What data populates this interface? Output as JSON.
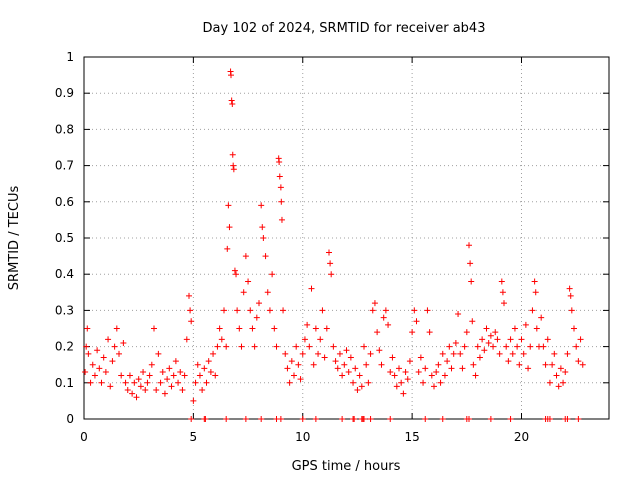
{
  "chart_data": {
    "type": "scatter",
    "title": "Day 102 of 2024, SRMTID for receiver ab43",
    "xlabel": "GPS time / hours",
    "ylabel": "SRMTID / TECUs",
    "xlim": [
      0,
      24
    ],
    "ylim": [
      0,
      1
    ],
    "x_ticks": [
      0,
      5,
      10,
      15,
      20
    ],
    "x_tick_labels": [
      "0",
      "5",
      "10",
      "15",
      "20"
    ],
    "y_ticks": [
      0,
      0.1,
      0.2,
      0.3,
      0.4,
      0.5,
      0.6,
      0.7,
      0.8,
      0.9,
      1
    ],
    "y_tick_labels": [
      "0",
      "0.1",
      "0.2",
      "0.3",
      "0.4",
      "0.5",
      "0.6",
      "0.7",
      "0.8",
      "0.9",
      "1"
    ],
    "grid": true,
    "marker": "+",
    "color": "#ff0000",
    "series": [
      {
        "name": "SRMTID",
        "points": [
          [
            0.05,
            0.13
          ],
          [
            0.1,
            0.2
          ],
          [
            0.15,
            0.25
          ],
          [
            0.2,
            0.18
          ],
          [
            0.3,
            0.1
          ],
          [
            0.4,
            0.15
          ],
          [
            0.5,
            0.12
          ],
          [
            0.6,
            0.19
          ],
          [
            0.7,
            0.14
          ],
          [
            0.8,
            0.1
          ],
          [
            0.9,
            0.17
          ],
          [
            1.0,
            0.13
          ],
          [
            1.1,
            0.22
          ],
          [
            1.2,
            0.09
          ],
          [
            1.3,
            0.16
          ],
          [
            1.4,
            0.2
          ],
          [
            1.5,
            0.25
          ],
          [
            1.6,
            0.18
          ],
          [
            1.7,
            0.12
          ],
          [
            1.8,
            0.21
          ],
          [
            1.9,
            0.1
          ],
          [
            2.0,
            0.08
          ],
          [
            2.1,
            0.12
          ],
          [
            2.2,
            0.07
          ],
          [
            2.3,
            0.1
          ],
          [
            2.4,
            0.06
          ],
          [
            2.5,
            0.11
          ],
          [
            2.6,
            0.09
          ],
          [
            2.7,
            0.13
          ],
          [
            2.8,
            0.08
          ],
          [
            2.9,
            0.1
          ],
          [
            3.0,
            0.12
          ],
          [
            3.1,
            0.15
          ],
          [
            3.2,
            0.25
          ],
          [
            3.3,
            0.08
          ],
          [
            3.4,
            0.18
          ],
          [
            3.5,
            0.1
          ],
          [
            3.6,
            0.13
          ],
          [
            3.7,
            0.07
          ],
          [
            3.8,
            0.11
          ],
          [
            3.9,
            0.14
          ],
          [
            4.0,
            0.09
          ],
          [
            4.1,
            0.12
          ],
          [
            4.2,
            0.16
          ],
          [
            4.3,
            0.1
          ],
          [
            4.4,
            0.13
          ],
          [
            4.5,
            0.08
          ],
          [
            4.6,
            0.12
          ],
          [
            4.7,
            0.22
          ],
          [
            4.8,
            0.34
          ],
          [
            4.85,
            0.3
          ],
          [
            4.9,
            0.27
          ],
          [
            5.0,
            0.05
          ],
          [
            5.1,
            0.1
          ],
          [
            5.2,
            0.15
          ],
          [
            5.3,
            0.12
          ],
          [
            5.4,
            0.08
          ],
          [
            5.5,
            0.14
          ],
          [
            5.6,
            0.1
          ],
          [
            5.7,
            0.16
          ],
          [
            5.8,
            0.13
          ],
          [
            5.9,
            0.18
          ],
          [
            6.0,
            0.12
          ],
          [
            6.1,
            0.2
          ],
          [
            6.2,
            0.25
          ],
          [
            6.3,
            0.22
          ],
          [
            6.4,
            0.3
          ],
          [
            6.5,
            0.2
          ],
          [
            6.55,
            0.47
          ],
          [
            6.6,
            0.59
          ],
          [
            6.65,
            0.53
          ],
          [
            6.7,
            0.96
          ],
          [
            6.72,
            0.95
          ],
          [
            6.75,
            0.88
          ],
          [
            6.78,
            0.87
          ],
          [
            6.8,
            0.73
          ],
          [
            6.82,
            0.7
          ],
          [
            6.85,
            0.69
          ],
          [
            6.9,
            0.41
          ],
          [
            6.95,
            0.4
          ],
          [
            7.0,
            0.3
          ],
          [
            7.1,
            0.25
          ],
          [
            7.2,
            0.2
          ],
          [
            7.3,
            0.35
          ],
          [
            7.4,
            0.45
          ],
          [
            7.5,
            0.38
          ],
          [
            7.6,
            0.3
          ],
          [
            7.7,
            0.25
          ],
          [
            7.8,
            0.2
          ],
          [
            7.9,
            0.28
          ],
          [
            8.0,
            0.32
          ],
          [
            8.1,
            0.59
          ],
          [
            8.15,
            0.53
          ],
          [
            8.2,
            0.5
          ],
          [
            8.3,
            0.45
          ],
          [
            8.4,
            0.35
          ],
          [
            8.5,
            0.3
          ],
          [
            8.6,
            0.4
          ],
          [
            8.7,
            0.25
          ],
          [
            8.8,
            0.2
          ],
          [
            8.9,
            0.72
          ],
          [
            8.92,
            0.71
          ],
          [
            8.95,
            0.67
          ],
          [
            9.0,
            0.64
          ],
          [
            9.02,
            0.6
          ],
          [
            9.05,
            0.55
          ],
          [
            9.1,
            0.3
          ],
          [
            9.2,
            0.18
          ],
          [
            9.3,
            0.14
          ],
          [
            9.4,
            0.1
          ],
          [
            9.5,
            0.16
          ],
          [
            9.6,
            0.12
          ],
          [
            9.7,
            0.2
          ],
          [
            9.8,
            0.15
          ],
          [
            9.9,
            0.11
          ],
          [
            10.0,
            0.18
          ],
          [
            10.1,
            0.22
          ],
          [
            10.2,
            0.26
          ],
          [
            10.3,
            0.2
          ],
          [
            10.4,
            0.36
          ],
          [
            10.5,
            0.15
          ],
          [
            10.6,
            0.25
          ],
          [
            10.7,
            0.18
          ],
          [
            10.8,
            0.22
          ],
          [
            10.9,
            0.3
          ],
          [
            11.0,
            0.17
          ],
          [
            11.1,
            0.25
          ],
          [
            11.2,
            0.46
          ],
          [
            11.25,
            0.43
          ],
          [
            11.3,
            0.4
          ],
          [
            11.4,
            0.2
          ],
          [
            11.5,
            0.16
          ],
          [
            11.6,
            0.14
          ],
          [
            11.7,
            0.18
          ],
          [
            11.8,
            0.12
          ],
          [
            11.9,
            0.15
          ],
          [
            12.0,
            0.19
          ],
          [
            12.1,
            0.13
          ],
          [
            12.2,
            0.17
          ],
          [
            12.3,
            0.1
          ],
          [
            12.4,
            0.14
          ],
          [
            12.5,
            0.08
          ],
          [
            12.6,
            0.12
          ],
          [
            12.7,
            0.09
          ],
          [
            12.8,
            0.2
          ],
          [
            12.9,
            0.15
          ],
          [
            13.0,
            0.1
          ],
          [
            13.1,
            0.18
          ],
          [
            13.2,
            0.3
          ],
          [
            13.3,
            0.32
          ],
          [
            13.4,
            0.24
          ],
          [
            13.5,
            0.19
          ],
          [
            13.6,
            0.15
          ],
          [
            13.7,
            0.28
          ],
          [
            13.8,
            0.3
          ],
          [
            13.9,
            0.26
          ],
          [
            14.0,
            0.13
          ],
          [
            14.1,
            0.17
          ],
          [
            14.2,
            0.12
          ],
          [
            14.3,
            0.09
          ],
          [
            14.4,
            0.14
          ],
          [
            14.5,
            0.1
          ],
          [
            14.6,
            0.07
          ],
          [
            14.7,
            0.13
          ],
          [
            14.8,
            0.11
          ],
          [
            14.9,
            0.16
          ],
          [
            15.0,
            0.24
          ],
          [
            15.1,
            0.3
          ],
          [
            15.2,
            0.27
          ],
          [
            15.3,
            0.13
          ],
          [
            15.4,
            0.17
          ],
          [
            15.5,
            0.1
          ],
          [
            15.6,
            0.14
          ],
          [
            15.7,
            0.3
          ],
          [
            15.8,
            0.24
          ],
          [
            15.9,
            0.12
          ],
          [
            16.0,
            0.09
          ],
          [
            16.1,
            0.13
          ],
          [
            16.2,
            0.15
          ],
          [
            16.3,
            0.1
          ],
          [
            16.4,
            0.18
          ],
          [
            16.5,
            0.12
          ],
          [
            16.6,
            0.16
          ],
          [
            16.7,
            0.2
          ],
          [
            16.8,
            0.14
          ],
          [
            16.9,
            0.18
          ],
          [
            17.0,
            0.21
          ],
          [
            17.1,
            0.29
          ],
          [
            17.2,
            0.18
          ],
          [
            17.3,
            0.14
          ],
          [
            17.4,
            0.2
          ],
          [
            17.5,
            0.24
          ],
          [
            17.6,
            0.48
          ],
          [
            17.65,
            0.43
          ],
          [
            17.7,
            0.38
          ],
          [
            17.75,
            0.27
          ],
          [
            17.8,
            0.15
          ],
          [
            17.9,
            0.12
          ],
          [
            18.0,
            0.2
          ],
          [
            18.1,
            0.17
          ],
          [
            18.2,
            0.22
          ],
          [
            18.3,
            0.19
          ],
          [
            18.4,
            0.25
          ],
          [
            18.5,
            0.21
          ],
          [
            18.6,
            0.23
          ],
          [
            18.7,
            0.2
          ],
          [
            18.8,
            0.24
          ],
          [
            18.9,
            0.22
          ],
          [
            19.0,
            0.18
          ],
          [
            19.1,
            0.38
          ],
          [
            19.15,
            0.35
          ],
          [
            19.2,
            0.32
          ],
          [
            19.3,
            0.2
          ],
          [
            19.4,
            0.16
          ],
          [
            19.5,
            0.22
          ],
          [
            19.6,
            0.18
          ],
          [
            19.7,
            0.25
          ],
          [
            19.8,
            0.2
          ],
          [
            19.9,
            0.15
          ],
          [
            20.0,
            0.22
          ],
          [
            20.1,
            0.18
          ],
          [
            20.2,
            0.26
          ],
          [
            20.3,
            0.14
          ],
          [
            20.4,
            0.2
          ],
          [
            20.5,
            0.3
          ],
          [
            20.6,
            0.38
          ],
          [
            20.65,
            0.35
          ],
          [
            20.7,
            0.25
          ],
          [
            20.8,
            0.2
          ],
          [
            20.9,
            0.28
          ],
          [
            21.0,
            0.2
          ],
          [
            21.1,
            0.15
          ],
          [
            21.2,
            0.22
          ],
          [
            21.3,
            0.1
          ],
          [
            21.4,
            0.15
          ],
          [
            21.5,
            0.18
          ],
          [
            21.6,
            0.12
          ],
          [
            21.7,
            0.09
          ],
          [
            21.8,
            0.14
          ],
          [
            21.9,
            0.1
          ],
          [
            22.0,
            0.13
          ],
          [
            22.1,
            0.18
          ],
          [
            22.2,
            0.36
          ],
          [
            22.25,
            0.34
          ],
          [
            22.3,
            0.3
          ],
          [
            22.4,
            0.25
          ],
          [
            22.5,
            0.2
          ],
          [
            22.6,
            0.16
          ],
          [
            22.7,
            0.22
          ],
          [
            22.8,
            0.15
          ],
          [
            4.9,
            0.0
          ],
          [
            5.5,
            0.0
          ],
          [
            5.55,
            0.0
          ],
          [
            6.5,
            0.0
          ],
          [
            7.4,
            0.0
          ],
          [
            8.1,
            0.0
          ],
          [
            8.8,
            0.0
          ],
          [
            9.0,
            0.0
          ],
          [
            10.0,
            0.0
          ],
          [
            10.6,
            0.0
          ],
          [
            11.8,
            0.0
          ],
          [
            12.3,
            0.0
          ],
          [
            12.35,
            0.0
          ],
          [
            12.7,
            0.0
          ],
          [
            12.75,
            0.0
          ],
          [
            12.8,
            0.0
          ],
          [
            13.1,
            0.0
          ],
          [
            14.0,
            0.0
          ],
          [
            15.6,
            0.0
          ],
          [
            16.4,
            0.0
          ],
          [
            17.5,
            0.0
          ],
          [
            17.6,
            0.0
          ],
          [
            18.6,
            0.0
          ],
          [
            19.5,
            0.0
          ],
          [
            21.1,
            0.0
          ],
          [
            21.2,
            0.0
          ],
          [
            21.3,
            0.0
          ],
          [
            22.0,
            0.0
          ],
          [
            22.1,
            0.0
          ],
          [
            22.6,
            0.0
          ]
        ]
      }
    ]
  }
}
